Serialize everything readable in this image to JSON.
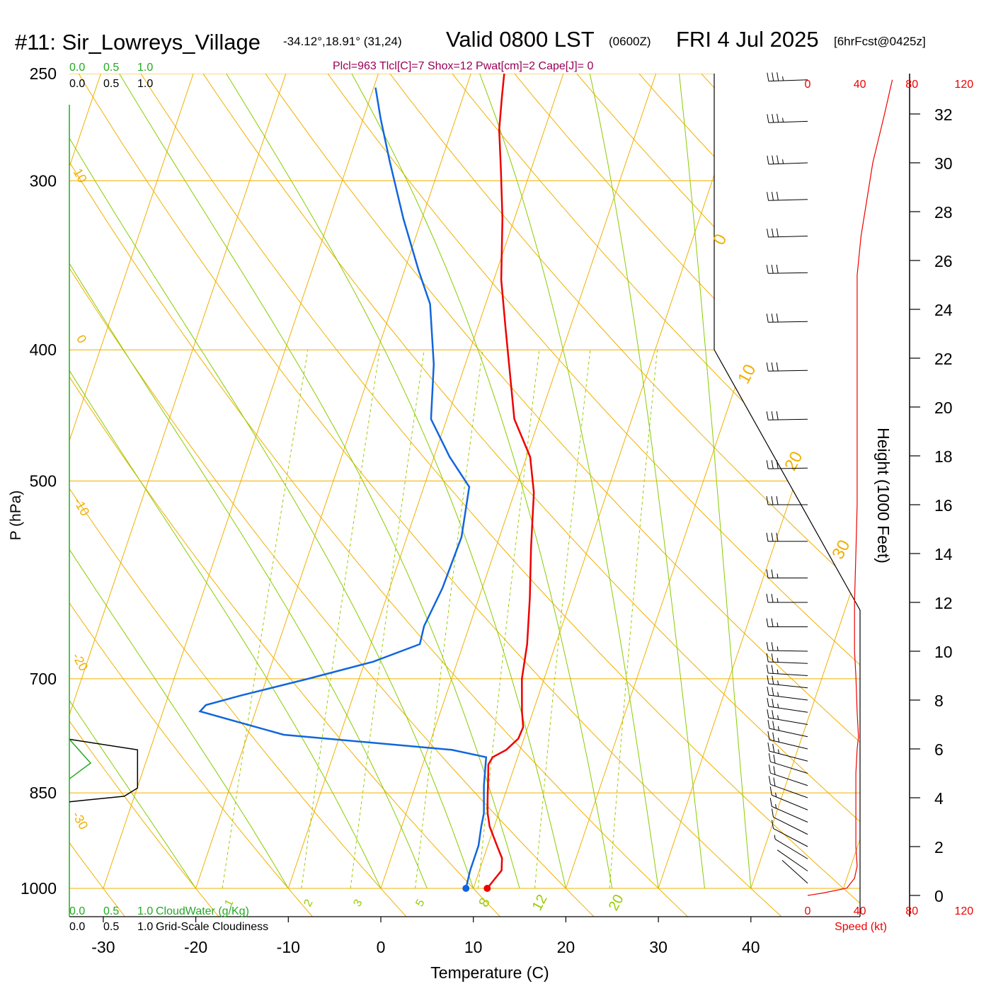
{
  "header": {
    "station": "#11: Sir_Lowreys_Village",
    "coords": "-34.12°,18.91° (31,24)",
    "valid": "Valid 0800 LST",
    "zulu": "(0600Z)",
    "date": "FRI 4 Jul 2025",
    "forecast": "[6hrFcst@0425z]",
    "indices": "Plcl=963 Tlcl[C]=7 Shox=12 Pwat[cm]=2 Cape[J]= 0"
  },
  "colors": {
    "temperature": "#ee0000",
    "dewpoint": "#1166dd",
    "isobar_isotherm": "#f0b000",
    "moist_adiabat": "#88cc00",
    "mixing_ratio": "#99cc00",
    "cloud_water": "#22aa22",
    "speed": "#ee0000"
  },
  "chart_data": {
    "type": "line",
    "title": "#11: Sir_Lowreys_Village",
    "xlabel": "Temperature (C)",
    "ylabel": "P (hPa)",
    "y2label": "Height (1000 Feet)",
    "xlim": [
      -34,
      36
    ],
    "ylim_hpa": [
      1000,
      250
    ],
    "x_ticks": [
      "-30",
      "-20",
      "-10",
      "0",
      "10",
      "20",
      "30",
      "40"
    ],
    "y_ticks": [
      "250",
      "300",
      "400",
      "500",
      "700",
      "850",
      "1000"
    ],
    "height_ticks": [
      "0",
      "2",
      "4",
      "6",
      "8",
      "10",
      "12",
      "14",
      "16",
      "18",
      "20",
      "22",
      "24",
      "26",
      "28",
      "30",
      "32"
    ],
    "isotherm_labels": [
      "0",
      "10",
      "20",
      "30",
      "10",
      "0",
      "-10",
      "-20",
      "-30"
    ],
    "mixing_ratio_labels": [
      "1",
      "2",
      "3",
      "5",
      "8",
      "12",
      "20"
    ],
    "cloud_axis": {
      "ticks": [
        "0.0",
        "0.5",
        "1.0"
      ],
      "cloud_water_label": "CloudWater (g/Kg)",
      "cloudiness_label": "Grid-Scale Cloudiness"
    },
    "speed_axis": {
      "ticks": [
        "0",
        "40",
        "80",
        "120"
      ],
      "label": "Speed (kt)"
    },
    "series": [
      {
        "name": "Temperature",
        "points": [
          [
            11.5,
            1000
          ],
          [
            12.4,
            970
          ],
          [
            12.0,
            950
          ],
          [
            11.0,
            930
          ],
          [
            9.5,
            900
          ],
          [
            8.8,
            880
          ],
          [
            8.3,
            860
          ],
          [
            7.6,
            830
          ],
          [
            7.1,
            810
          ],
          [
            7.3,
            800
          ],
          [
            8.5,
            790
          ],
          [
            9.4,
            775
          ],
          [
            9.5,
            760
          ],
          [
            8.8,
            740
          ],
          [
            7.6,
            700
          ],
          [
            6.9,
            660
          ],
          [
            5.5,
            610
          ],
          [
            3.8,
            560
          ],
          [
            2.1,
            510
          ],
          [
            0.4,
            480
          ],
          [
            -2.7,
            450
          ],
          [
            -4.6,
            420
          ],
          [
            -7.0,
            385
          ],
          [
            -9.2,
            355
          ],
          [
            -11.3,
            320
          ],
          [
            -13.2,
            295
          ],
          [
            -14.9,
            275
          ],
          [
            -15.8,
            260
          ],
          [
            -16.4,
            250
          ]
        ]
      },
      {
        "name": "Dew point",
        "points": [
          [
            9.2,
            1000
          ],
          [
            9.0,
            970
          ],
          [
            9.0,
            930
          ],
          [
            8.6,
            900
          ],
          [
            8.4,
            880
          ],
          [
            7.4,
            840
          ],
          [
            6.6,
            800
          ],
          [
            2.6,
            790
          ],
          [
            -16.1,
            770
          ],
          [
            -26.0,
            740
          ],
          [
            -25.6,
            732
          ],
          [
            -22.1,
            720
          ],
          [
            -15.5,
            700
          ],
          [
            -9.1,
            680
          ],
          [
            -4.7,
            660
          ],
          [
            -4.9,
            640
          ],
          [
            -4.3,
            600
          ],
          [
            -4.1,
            550
          ],
          [
            -5.1,
            505
          ],
          [
            -8.3,
            480
          ],
          [
            -11.7,
            450
          ],
          [
            -13.4,
            410
          ],
          [
            -16.0,
            370
          ],
          [
            -18.4,
            350
          ],
          [
            -22.0,
            320
          ],
          [
            -25.6,
            290
          ],
          [
            -28.1,
            270
          ],
          [
            -29.8,
            256
          ]
        ]
      }
    ],
    "surface_points": {
      "temperature": [
        11.5,
        1000
      ],
      "dewpoint": [
        9.2,
        1000
      ]
    },
    "cloudiness": [
      [
        0.0,
        776
      ],
      [
        0.77,
        790
      ],
      [
        0.77,
        843
      ],
      [
        0.62,
        855
      ],
      [
        0.0,
        863
      ]
    ],
    "cloud_water": [
      [
        0.0,
        776
      ],
      [
        0.24,
        808
      ],
      [
        0.0,
        830
      ]
    ],
    "wind_profile": [
      {
        "h": 0.5,
        "spd": 1,
        "dir": 320
      },
      {
        "h": 1.0,
        "spd": 3,
        "dir": 310
      },
      {
        "h": 1.5,
        "spd": 6,
        "dir": 305
      },
      {
        "h": 2.0,
        "spd": 10,
        "dir": 300
      },
      {
        "h": 2.5,
        "spd": 13,
        "dir": 300
      },
      {
        "h": 3.0,
        "spd": 15,
        "dir": 295
      },
      {
        "h": 3.5,
        "spd": 18,
        "dir": 295
      },
      {
        "h": 4.0,
        "spd": 20,
        "dir": 290
      },
      {
        "h": 4.5,
        "spd": 22,
        "dir": 290
      },
      {
        "h": 5.0,
        "spd": 24,
        "dir": 290
      },
      {
        "h": 5.5,
        "spd": 25,
        "dir": 285
      },
      {
        "h": 6.0,
        "spd": 26,
        "dir": 285
      },
      {
        "h": 6.5,
        "spd": 27,
        "dir": 285
      },
      {
        "h": 7.0,
        "spd": 27,
        "dir": 280
      },
      {
        "h": 7.5,
        "spd": 27,
        "dir": 280
      },
      {
        "h": 8.0,
        "spd": 27,
        "dir": 280
      },
      {
        "h": 8.5,
        "spd": 28,
        "dir": 280
      },
      {
        "h": 9.0,
        "spd": 28,
        "dir": 275
      },
      {
        "h": 9.5,
        "spd": 28,
        "dir": 275
      },
      {
        "h": 10.0,
        "spd": 28,
        "dir": 275
      },
      {
        "h": 11.0,
        "spd": 28,
        "dir": 270
      },
      {
        "h": 12.0,
        "spd": 28,
        "dir": 270
      },
      {
        "h": 13.0,
        "spd": 28,
        "dir": 270
      },
      {
        "h": 14.5,
        "spd": 30,
        "dir": 270
      },
      {
        "h": 16.0,
        "spd": 30,
        "dir": 270
      },
      {
        "h": 17.5,
        "spd": 30,
        "dir": 265
      },
      {
        "h": 19.5,
        "spd": 30,
        "dir": 265
      },
      {
        "h": 21.5,
        "spd": 30,
        "dir": 265
      },
      {
        "h": 23.5,
        "spd": 30,
        "dir": 265
      },
      {
        "h": 25.5,
        "spd": 30,
        "dir": 265
      },
      {
        "h": 27.0,
        "spd": 32,
        "dir": 262
      },
      {
        "h": 28.5,
        "spd": 34,
        "dir": 262
      },
      {
        "h": 30.0,
        "spd": 35,
        "dir": 260
      },
      {
        "h": 31.7,
        "spd": 37,
        "dir": 260
      },
      {
        "h": 33.4,
        "spd": 39,
        "dir": 260
      }
    ],
    "speed_profile": [
      [
        0.0,
        0
      ],
      [
        0.1,
        12
      ],
      [
        0.3,
        30
      ],
      [
        0.7,
        36
      ],
      [
        1.2,
        38
      ],
      [
        2.0,
        37
      ],
      [
        3.0,
        37
      ],
      [
        4.0,
        37
      ],
      [
        5.0,
        37
      ],
      [
        6.0,
        38
      ],
      [
        6.5,
        39
      ],
      [
        7.5,
        38
      ],
      [
        9.0,
        37
      ],
      [
        10.0,
        36
      ],
      [
        12.0,
        36
      ],
      [
        14.0,
        37
      ],
      [
        16.0,
        38
      ],
      [
        18.0,
        38
      ],
      [
        20.0,
        38
      ],
      [
        22.0,
        38
      ],
      [
        24.0,
        38
      ],
      [
        25.4,
        38
      ],
      [
        27.0,
        41
      ],
      [
        30.0,
        50
      ],
      [
        32.0,
        59
      ],
      [
        33.4,
        65
      ]
    ]
  }
}
